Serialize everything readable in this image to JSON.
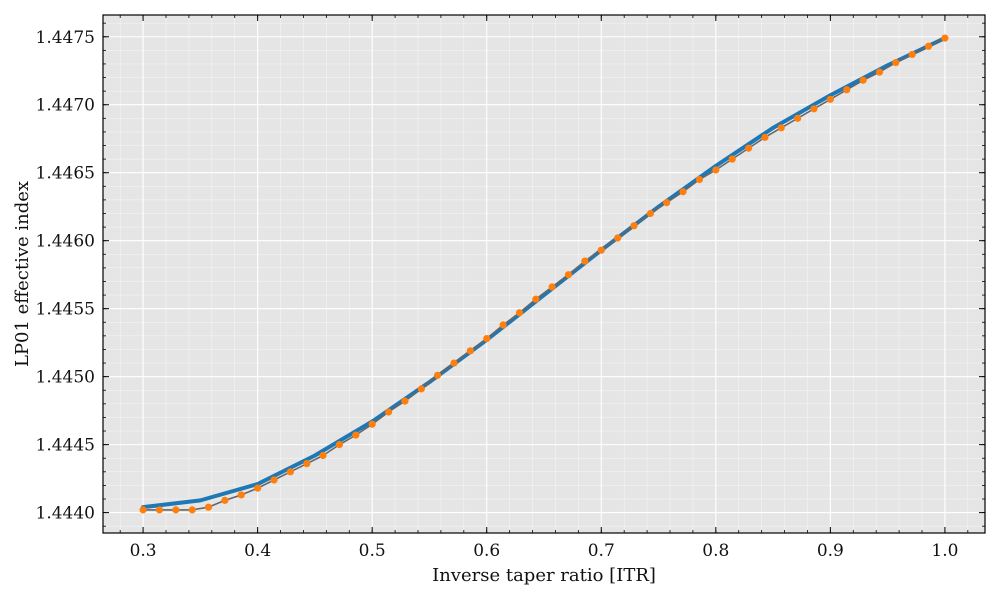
{
  "chart_data": {
    "type": "line",
    "title": "",
    "xlabel": "Inverse taper ratio [ITR]",
    "ylabel": "LP01 effective index",
    "xlim": [
      0.265,
      1.035
    ],
    "ylim": [
      1.44385,
      1.44766
    ],
    "x_ticks": [
      "0.3",
      "0.4",
      "0.5",
      "0.6",
      "0.7",
      "0.8",
      "0.9",
      "1.0"
    ],
    "y_ticks": [
      "1.4440",
      "1.4445",
      "1.4450",
      "1.4455",
      "1.4460",
      "1.4465",
      "1.4470",
      "1.4475"
    ],
    "grid": true,
    "legend": "none",
    "colors": {
      "plot_background": "#e5e5e5",
      "grid": "#ffffff",
      "continuous_series": "#1f77b4",
      "sampled_series": "#ff7f0e",
      "connector_line": "#666666"
    },
    "series": [
      {
        "kind": "continuous",
        "x": [
          0.3,
          0.35,
          0.4,
          0.45,
          0.5,
          0.55,
          0.6,
          0.65,
          0.7,
          0.75,
          0.8,
          0.85,
          0.9,
          0.95,
          1.0
        ],
        "y": [
          1.44404,
          1.44409,
          1.44421,
          1.44442,
          1.44467,
          1.44496,
          1.44527,
          1.4456,
          1.44593,
          1.44625,
          1.44655,
          1.44683,
          1.44707,
          1.44729,
          1.44749
        ]
      },
      {
        "kind": "sampled",
        "x": [
          0.3,
          0.3143,
          0.3286,
          0.3429,
          0.3571,
          0.3714,
          0.3857,
          0.4,
          0.4143,
          0.4286,
          0.4429,
          0.4571,
          0.4714,
          0.4857,
          0.5,
          0.5143,
          0.5286,
          0.5429,
          0.5571,
          0.5714,
          0.5857,
          0.6,
          0.6143,
          0.6286,
          0.6429,
          0.6571,
          0.6714,
          0.6857,
          0.7,
          0.7143,
          0.7286,
          0.7429,
          0.7571,
          0.7714,
          0.7857,
          0.8,
          0.8143,
          0.8286,
          0.8429,
          0.8571,
          0.8714,
          0.8857,
          0.9,
          0.9143,
          0.9286,
          0.9429,
          0.9571,
          0.9714,
          0.9857,
          1.0
        ],
        "y": [
          1.44402,
          1.44402,
          1.44402,
          1.44402,
          1.44404,
          1.44409,
          1.44413,
          1.44418,
          1.44424,
          1.4443,
          1.44436,
          1.44442,
          1.4445,
          1.44457,
          1.44465,
          1.44474,
          1.44482,
          1.44491,
          1.44501,
          1.4451,
          1.44519,
          1.44528,
          1.44538,
          1.44547,
          1.44557,
          1.44566,
          1.44575,
          1.44585,
          1.44593,
          1.44602,
          1.44611,
          1.4462,
          1.44628,
          1.44636,
          1.44645,
          1.44652,
          1.4466,
          1.44668,
          1.44676,
          1.44683,
          1.4469,
          1.44697,
          1.44704,
          1.44711,
          1.44718,
          1.44724,
          1.44731,
          1.44737,
          1.44743,
          1.44749
        ]
      }
    ]
  }
}
